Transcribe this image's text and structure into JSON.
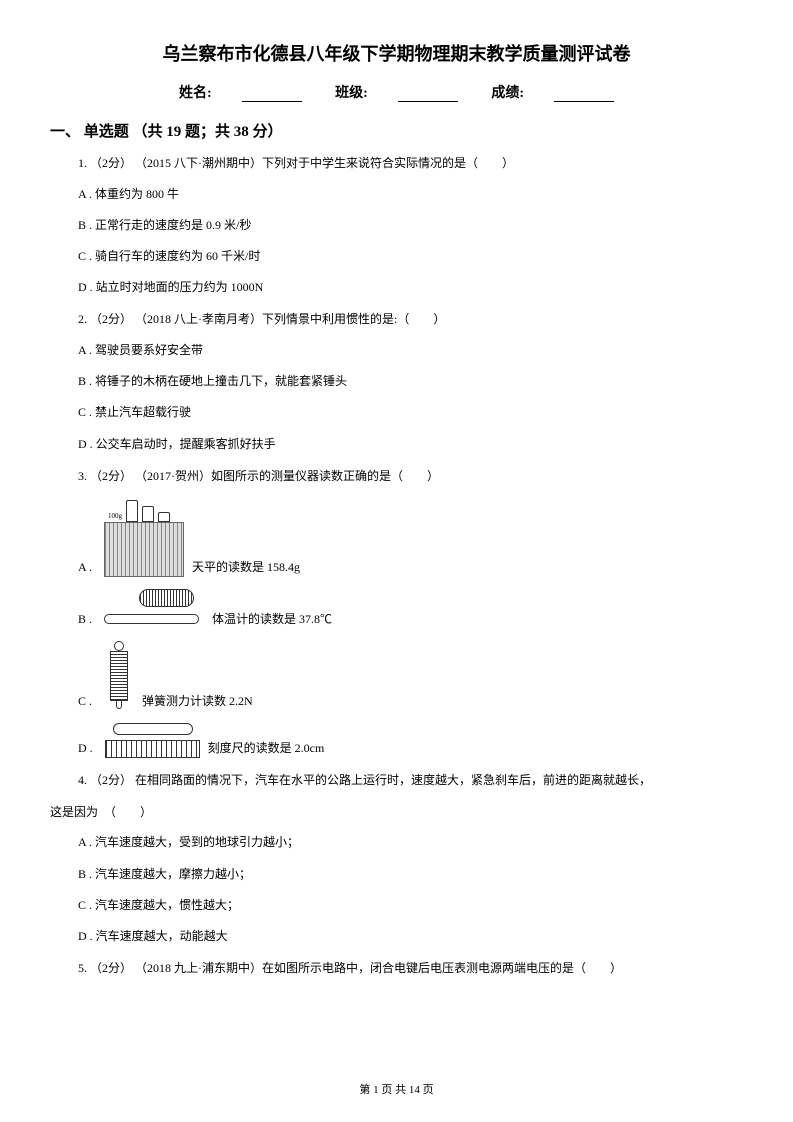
{
  "title": "乌兰察布市化德县八年级下学期物理期末教学质量测评试卷",
  "info": {
    "name_label": "姓名:",
    "class_label": "班级:",
    "score_label": "成绩:"
  },
  "section1": {
    "header": "一、 单选题 （共 19 题；共 38 分）"
  },
  "q1": {
    "stem": "1.  （2分） （2015 八下·潮州期中）下列对于中学生来说符合实际情况的是（　　）",
    "a": "A . 体重约为 800 牛",
    "b": "B . 正常行走的速度约是 0.9 米/秒",
    "c": "C . 骑自行车的速度约为 60 千米/时",
    "d": "D . 站立时对地面的压力约为 1000N"
  },
  "q2": {
    "stem": "2.  （2分） （2018 八上·孝南月考）下列情景中利用惯性的是:（　　）",
    "a": "A . 驾驶员要系好安全带",
    "b": "B . 将锤子的木柄在硬地上撞击几下，就能套紧锤头",
    "c": "C . 禁止汽车超载行驶",
    "d": "D . 公交车启动时，提醒乘客抓好扶手"
  },
  "q3": {
    "stem": "3.  （2分） （2017·贺州）如图所示的测量仪器读数正确的是（　　）",
    "a_label": "A . ",
    "a_text": "天平的读数是 158.4g",
    "b_label": "B . ",
    "b_text": "体温计的读数是 37.8℃",
    "c_label": "C . ",
    "c_text": "弹簧测力计读数 2.2N",
    "d_label": "D . ",
    "d_text": "刻度尺的读数是 2.0cm",
    "weight_labels": {
      "w100": "100g",
      "w50": "50g",
      "w5": "5g"
    }
  },
  "q4": {
    "stem": "4.  （2分） 在相同路面的情况下，汽车在水平的公路上运行时，速度越大，紧急刹车后，前进的距离就越长，",
    "trailing": "这是因为　（　　）",
    "a": "A . 汽车速度越大，受到的地球引力越小；",
    "b": "B . 汽车速度越大，摩擦力越小；",
    "c": "C . 汽车速度越大，惯性越大；",
    "d": "D . 汽车速度越大，动能越大"
  },
  "q5": {
    "stem": "5.  （2分） （2018 九上·浦东期中）在如图所示电路中，闭合电键后电压表测电源两端电压的是（　　）"
  },
  "footer": {
    "page": "第 1 页 共 14 页"
  }
}
